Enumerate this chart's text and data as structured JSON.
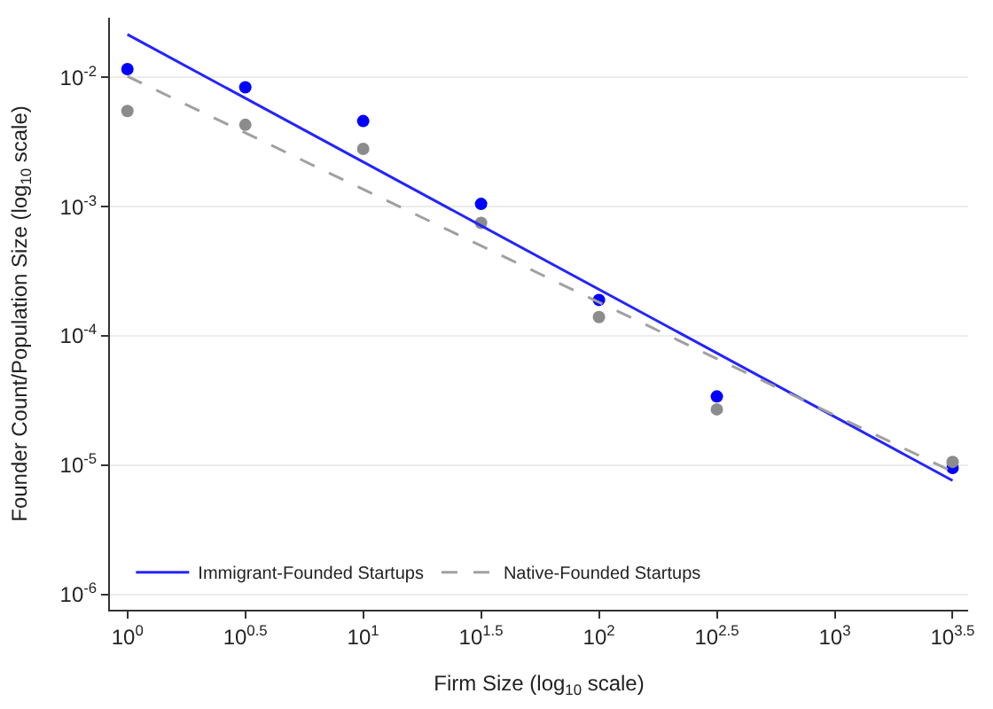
{
  "chart_data": {
    "type": "scatter",
    "xlabel": "Firm Size (log$_{10}$ scale)",
    "ylabel": "Founder Count/Population Size (log$_{10}$ scale)",
    "log": "xy",
    "grid": "y",
    "legend": "bottom",
    "xlim": [
      0.843,
      3681
    ],
    "ylim": [
      7.6e-07,
      0.029
    ],
    "xticks": [
      {
        "value": 1,
        "label": "10$^{0}$"
      },
      {
        "value": 3.162,
        "label": "10$^{0.5}$"
      },
      {
        "value": 10,
        "label": "10$^{1}$"
      },
      {
        "value": 31.62,
        "label": "10$^{1.5}$"
      },
      {
        "value": 100,
        "label": "10$^{2}$"
      },
      {
        "value": 316.2,
        "label": "10$^{2.5}$"
      },
      {
        "value": 1000,
        "label": "10$^{3}$"
      },
      {
        "value": 3162,
        "label": "10$^{3.5}$"
      }
    ],
    "yticks": [
      {
        "value": 1e-06,
        "label": "10$^{-6}$"
      },
      {
        "value": 1e-05,
        "label": "10$^{-5}$"
      },
      {
        "value": 0.0001,
        "label": "10$^{-4}$"
      },
      {
        "value": 0.001,
        "label": "10$^{-3}$"
      },
      {
        "value": 0.01,
        "label": "10$^{-2}$"
      }
    ],
    "series": [
      {
        "marker": "circle",
        "color": "#0000ff",
        "x": [
          1,
          3.162,
          10,
          31.62,
          100,
          316.2,
          3162
        ],
        "values": [
          0.0116,
          0.0084,
          0.0046,
          0.00105,
          0.00019,
          3.4e-05,
          9.5e-06
        ]
      },
      {
        "marker": "circle",
        "color": "#8c8c8c",
        "x": [
          1,
          3.162,
          10,
          31.62,
          100,
          316.2,
          3162
        ],
        "values": [
          0.0055,
          0.0043,
          0.0028,
          0.00075,
          0.00014,
          2.7e-05,
          1.06e-05
        ]
      },
      {
        "type": "line",
        "name": "Immigrant-Founded Startups",
        "color": "#2323ff",
        "line_style": "solid",
        "x": [
          1,
          3162
        ],
        "values": [
          0.0215,
          7.6e-06
        ]
      },
      {
        "type": "line",
        "name": "Native-Founded Startups",
        "color": "#a0a0a0",
        "line_style": "dashed",
        "x": [
          1,
          3162
        ],
        "values": [
          0.0102,
          8.9e-06
        ]
      }
    ]
  }
}
